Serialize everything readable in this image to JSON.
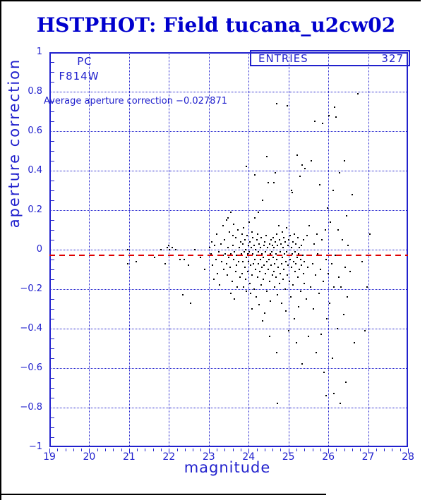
{
  "title": "HSTPHOT: Field tucana_u2cw02",
  "annotations": {
    "detector": "PC",
    "filter": "F814W",
    "average_label": "Average aperture correction −0.027871"
  },
  "entries_box": {
    "label": "ENTRIES",
    "value": "327"
  },
  "colors": {
    "plot_blue": "#2121cd",
    "title_blue": "#0000cd",
    "reference_red": "#e00000",
    "point_black": "#000000",
    "frame_black": "#000000"
  },
  "chart_data": {
    "type": "scatter",
    "title": "HSTPHOT: Field tucana_u2cw02",
    "xlabel": "magnitude",
    "ylabel": "aperture correction",
    "xlim": [
      19,
      28
    ],
    "ylim": [
      -1,
      1
    ],
    "x_ticks": [
      19,
      20,
      21,
      22,
      23,
      24,
      25,
      26,
      27,
      28
    ],
    "y_ticks": [
      -1,
      -0.8,
      -0.6,
      -0.4,
      -0.2,
      0,
      0.2,
      0.4,
      0.6,
      0.8,
      1
    ],
    "x_minor_step": 0.2,
    "y_minor_step": 0.05,
    "grid": true,
    "legend": {
      "label": "ENTRIES",
      "value": 327,
      "position": "top-right"
    },
    "reference_line": {
      "value": -0.027871,
      "color": "#e00000",
      "style": "dashed"
    },
    "points": [
      [
        20.97,
        0.0
      ],
      [
        20.97,
        -0.07
      ],
      [
        21.18,
        -0.06
      ],
      [
        21.59,
        -0.03
      ],
      [
        21.64,
        -0.04
      ],
      [
        21.8,
        0.0
      ],
      [
        21.91,
        -0.07
      ],
      [
        21.96,
        0.01
      ],
      [
        21.99,
        0.02
      ],
      [
        22.01,
        0.0
      ],
      [
        22.05,
        -0.03
      ],
      [
        22.08,
        0.01
      ],
      [
        22.17,
        0.0
      ],
      [
        22.28,
        -0.05
      ],
      [
        22.35,
        -0.23
      ],
      [
        22.38,
        -0.05
      ],
      [
        22.49,
        -0.08
      ],
      [
        22.55,
        -0.27
      ],
      [
        22.65,
        0.0
      ],
      [
        22.8,
        -0.04
      ],
      [
        22.9,
        -0.1
      ],
      [
        23.02,
        0.01
      ],
      [
        23.05,
        -0.02
      ],
      [
        23.08,
        0.04
      ],
      [
        23.1,
        -0.08
      ],
      [
        23.12,
        -0.15
      ],
      [
        23.15,
        0.02
      ],
      [
        23.18,
        -0.05
      ],
      [
        23.2,
        0.08
      ],
      [
        23.22,
        -0.12
      ],
      [
        23.25,
        -0.01
      ],
      [
        23.27,
        -0.18
      ],
      [
        23.3,
        0.03
      ],
      [
        23.32,
        -0.06
      ],
      [
        23.35,
        0.12
      ],
      [
        23.36,
        -0.03
      ],
      [
        23.38,
        -0.1
      ],
      [
        23.4,
        0.05
      ],
      [
        23.42,
        -0.02
      ],
      [
        23.44,
        0.15
      ],
      [
        23.45,
        -0.07
      ],
      [
        23.47,
        -0.13
      ],
      [
        23.48,
        0.01
      ],
      [
        23.5,
        -0.04
      ],
      [
        23.52,
        0.09
      ],
      [
        23.53,
        -0.09
      ],
      [
        23.55,
        0.19
      ],
      [
        23.56,
        -0.02
      ],
      [
        23.58,
        -0.16
      ],
      [
        23.6,
        0.02
      ],
      [
        23.62,
        -0.05
      ],
      [
        23.63,
        0.13
      ],
      [
        23.65,
        -0.01
      ],
      [
        23.67,
        -0.11
      ],
      [
        23.68,
        0.06
      ],
      [
        23.7,
        -0.03
      ],
      [
        23.72,
        -0.19
      ],
      [
        23.73,
        0.1
      ],
      [
        23.75,
        -0.06
      ],
      [
        23.77,
        0.01
      ],
      [
        23.78,
        -0.14
      ],
      [
        23.8,
        0.04
      ],
      [
        23.55,
        -0.22
      ],
      [
        23.65,
        -0.25
      ],
      [
        23.48,
        0.16
      ],
      [
        23.7,
        -0.08
      ],
      [
        23.6,
        0.07
      ],
      [
        23.82,
        -0.02
      ],
      [
        23.83,
        0.08
      ],
      [
        23.84,
        -0.12
      ],
      [
        23.85,
        0.03
      ],
      [
        23.86,
        -0.06
      ],
      [
        23.87,
        -0.19
      ],
      [
        23.88,
        0.11
      ],
      [
        23.89,
        -0.01
      ],
      [
        23.9,
        -0.09
      ],
      [
        23.91,
        0.05
      ],
      [
        23.92,
        -0.15
      ],
      [
        23.93,
        0.0
      ],
      [
        23.94,
        -0.04
      ],
      [
        23.95,
        0.42
      ],
      [
        23.95,
        -0.21
      ],
      [
        23.96,
        0.07
      ],
      [
        23.97,
        -0.02
      ],
      [
        23.98,
        -0.11
      ],
      [
        23.99,
        0.02
      ],
      [
        24.0,
        -0.06
      ],
      [
        24.01,
        0.14
      ],
      [
        24.02,
        -0.01
      ],
      [
        24.03,
        -0.17
      ],
      [
        24.04,
        0.04
      ],
      [
        24.05,
        -0.08
      ],
      [
        24.05,
        -0.22
      ],
      [
        24.06,
        0.01
      ],
      [
        24.07,
        -0.03
      ],
      [
        24.08,
        0.09
      ],
      [
        24.09,
        -0.13
      ],
      [
        24.1,
        -0.02
      ],
      [
        24.11,
        0.06
      ],
      [
        24.12,
        -0.07
      ],
      [
        24.13,
        -0.2
      ],
      [
        24.14,
        0.02
      ],
      [
        24.15,
        -0.05
      ],
      [
        24.16,
        0.38
      ],
      [
        24.17,
        -0.1
      ],
      [
        24.18,
        0.0
      ],
      [
        24.19,
        -0.24
      ],
      [
        24.2,
        0.05
      ],
      [
        24.21,
        -0.03
      ],
      [
        24.22,
        -0.14
      ],
      [
        24.23,
        0.08
      ],
      [
        24.24,
        -0.01
      ],
      [
        24.25,
        -0.07
      ],
      [
        24.26,
        -0.28
      ],
      [
        24.27,
        0.03
      ],
      [
        24.28,
        -0.11
      ],
      [
        24.29,
        0.01
      ],
      [
        24.3,
        -0.05
      ],
      [
        24.31,
        -0.18
      ],
      [
        24.32,
        0.06
      ],
      [
        24.33,
        -0.02
      ],
      [
        24.34,
        -0.09
      ],
      [
        24.35,
        0.25
      ],
      [
        24.36,
        -0.04
      ],
      [
        24.37,
        -0.15
      ],
      [
        24.38,
        0.02
      ],
      [
        24.39,
        -0.08
      ],
      [
        24.4,
        -0.32
      ],
      [
        24.41,
        0.04
      ],
      [
        24.42,
        -0.01
      ],
      [
        24.43,
        -0.12
      ],
      [
        24.44,
        0.07
      ],
      [
        24.45,
        -0.06
      ],
      [
        24.46,
        -0.21
      ],
      [
        24.47,
        0.01
      ],
      [
        24.48,
        -0.03
      ],
      [
        24.49,
        -0.1
      ],
      [
        24.5,
        0.34
      ],
      [
        24.51,
        -0.05
      ],
      [
        24.52,
        -0.16
      ],
      [
        24.53,
        0.03
      ],
      [
        24.54,
        -0.02
      ],
      [
        24.55,
        -0.26
      ],
      [
        24.56,
        0.05
      ],
      [
        24.57,
        -0.08
      ],
      [
        24.58,
        -0.01
      ],
      [
        24.59,
        -0.13
      ],
      [
        24.6,
        0.02
      ],
      [
        24.45,
        0.47
      ],
      [
        24.7,
        0.74
      ],
      [
        24.64,
        0.34
      ],
      [
        24.67,
        0.39
      ],
      [
        24.52,
        -0.44
      ],
      [
        24.35,
        -0.36
      ],
      [
        24.25,
        0.19
      ],
      [
        24.15,
        0.16
      ],
      [
        24.08,
        -0.3
      ],
      [
        24.72,
        -0.78
      ],
      [
        24.61,
        -0.04
      ],
      [
        24.62,
        0.06
      ],
      [
        24.63,
        -0.11
      ],
      [
        24.64,
        0.01
      ],
      [
        24.65,
        -0.07
      ],
      [
        24.66,
        -0.19
      ],
      [
        24.67,
        0.04
      ],
      [
        24.68,
        -0.02
      ],
      [
        24.69,
        -0.14
      ],
      [
        24.7,
        0.08
      ],
      [
        24.71,
        -0.05
      ],
      [
        24.72,
        -0.23
      ],
      [
        24.73,
        0.02
      ],
      [
        24.74,
        -0.09
      ],
      [
        24.75,
        0.12
      ],
      [
        24.76,
        -0.03
      ],
      [
        24.77,
        -0.17
      ],
      [
        24.78,
        0.05
      ],
      [
        24.79,
        -0.01
      ],
      [
        24.8,
        -0.12
      ],
      [
        24.81,
        0.03
      ],
      [
        24.82,
        -0.07
      ],
      [
        24.83,
        -0.27
      ],
      [
        24.84,
        0.09
      ],
      [
        24.85,
        -0.04
      ],
      [
        24.86,
        -0.15
      ],
      [
        24.87,
        0.01
      ],
      [
        24.88,
        -0.1
      ],
      [
        24.89,
        0.06
      ],
      [
        24.9,
        -0.02
      ],
      [
        24.91,
        -0.2
      ],
      [
        24.92,
        0.04
      ],
      [
        24.93,
        -0.06
      ],
      [
        24.94,
        -0.31
      ],
      [
        24.95,
        0.11
      ],
      [
        24.96,
        -0.01
      ],
      [
        24.97,
        -0.13
      ],
      [
        24.98,
        0.02
      ],
      [
        24.99,
        -0.08
      ],
      [
        25.0,
        -0.41
      ],
      [
        25.01,
        0.05
      ],
      [
        25.02,
        -0.03
      ],
      [
        25.03,
        -0.16
      ],
      [
        25.04,
        0.07
      ],
      [
        25.05,
        -0.05
      ],
      [
        25.06,
        -0.24
      ],
      [
        25.07,
        0.01
      ],
      [
        25.08,
        -0.09
      ],
      [
        25.09,
        0.29
      ],
      [
        25.1,
        -0.02
      ],
      [
        25.11,
        -0.18
      ],
      [
        25.12,
        0.04
      ],
      [
        25.13,
        -0.06
      ],
      [
        25.14,
        -0.35
      ],
      [
        25.15,
        0.08
      ],
      [
        25.16,
        -0.01
      ],
      [
        25.17,
        -0.11
      ],
      [
        25.18,
        0.03
      ],
      [
        25.19,
        -0.07
      ],
      [
        25.2,
        -0.47
      ],
      [
        25.21,
        0.48
      ],
      [
        25.22,
        -0.04
      ],
      [
        25.23,
        -0.14
      ],
      [
        25.24,
        0.06
      ],
      [
        25.25,
        -0.02
      ],
      [
        25.26,
        -0.29
      ],
      [
        25.27,
        0.01
      ],
      [
        25.28,
        -0.1
      ],
      [
        25.29,
        0.37
      ],
      [
        25.3,
        -0.05
      ],
      [
        25.31,
        -0.21
      ],
      [
        25.32,
        0.02
      ],
      [
        25.33,
        -0.08
      ],
      [
        25.34,
        -0.58
      ],
      [
        25.35,
        0.43
      ],
      [
        25.36,
        -0.03
      ],
      [
        25.37,
        -0.12
      ],
      [
        25.38,
        0.05
      ],
      [
        25.39,
        -0.06
      ],
      [
        25.4,
        -0.17
      ],
      [
        24.97,
        0.73
      ],
      [
        25.08,
        0.3
      ],
      [
        24.7,
        -0.52
      ],
      [
        25.42,
        0.41
      ],
      [
        25.44,
        -0.25
      ],
      [
        25.46,
        0.07
      ],
      [
        25.48,
        -0.09
      ],
      [
        25.5,
        -0.44
      ],
      [
        25.52,
        0.12
      ],
      [
        25.54,
        -0.03
      ],
      [
        25.56,
        -0.19
      ],
      [
        25.58,
        0.45
      ],
      [
        25.6,
        -0.07
      ],
      [
        25.62,
        -0.3
      ],
      [
        25.64,
        0.03
      ],
      [
        25.66,
        0.65
      ],
      [
        25.68,
        -0.13
      ],
      [
        25.7,
        -0.52
      ],
      [
        25.72,
        0.08
      ],
      [
        25.74,
        -0.02
      ],
      [
        25.76,
        -0.22
      ],
      [
        25.78,
        0.33
      ],
      [
        25.8,
        -0.1
      ],
      [
        25.82,
        -0.43
      ],
      [
        25.84,
        0.05
      ],
      [
        25.86,
        0.64
      ],
      [
        25.88,
        -0.16
      ],
      [
        25.9,
        -0.62
      ],
      [
        25.92,
        0.1
      ],
      [
        25.94,
        -0.05
      ],
      [
        25.96,
        -0.35
      ],
      [
        25.98,
        0.21
      ],
      [
        26.0,
        -0.12
      ],
      [
        26.02,
        0.68
      ],
      [
        26.04,
        -0.27
      ],
      [
        26.06,
        0.14
      ],
      [
        26.08,
        -0.07
      ],
      [
        26.1,
        -0.55
      ],
      [
        26.12,
        0.3
      ],
      [
        26.14,
        -0.19
      ],
      [
        26.16,
        0.72
      ],
      [
        26.18,
        -0.03
      ],
      [
        26.2,
        0.67
      ],
      [
        26.22,
        -0.4
      ],
      [
        26.24,
        0.1
      ],
      [
        26.26,
        -0.14
      ],
      [
        26.28,
        0.39
      ],
      [
        26.3,
        -0.78
      ],
      [
        26.32,
        -0.19
      ],
      [
        26.35,
        0.05
      ],
      [
        26.38,
        -0.33
      ],
      [
        26.4,
        0.45
      ],
      [
        26.42,
        -0.09
      ],
      [
        26.44,
        -0.67
      ],
      [
        26.46,
        0.17
      ],
      [
        26.48,
        -0.24
      ],
      [
        26.5,
        0.02
      ],
      [
        25.95,
        -0.74
      ],
      [
        26.14,
        -0.73
      ],
      [
        26.55,
        -0.11
      ],
      [
        26.6,
        0.28
      ],
      [
        26.65,
        -0.47
      ],
      [
        26.75,
        0.79
      ],
      [
        26.85,
        -0.06
      ],
      [
        26.92,
        -0.41
      ],
      [
        26.98,
        -0.19
      ],
      [
        27.05,
        0.08
      ]
    ]
  }
}
